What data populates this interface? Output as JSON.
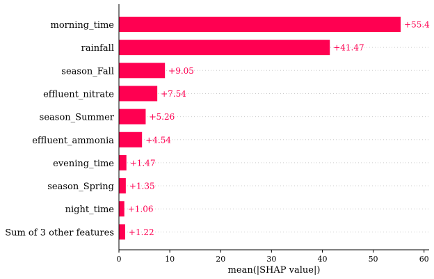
{
  "chart_data": {
    "type": "bar",
    "orientation": "horizontal",
    "categories": [
      "morning_time",
      "rainfall",
      "season_Fall",
      "effluent_nitrate",
      "season_Summer",
      "effluent_ammonia",
      "evening_time",
      "season_Spring",
      "night_time",
      "Sum of 3 other features"
    ],
    "values": [
      55.4,
      41.47,
      9.05,
      7.54,
      5.26,
      4.54,
      1.47,
      1.35,
      1.06,
      1.22
    ],
    "value_labels": [
      "+55.4",
      "+41.47",
      "+9.05",
      "+7.54",
      "+5.26",
      "+4.54",
      "+1.47",
      "+1.35",
      "+1.06",
      "+1.22"
    ],
    "xlabel": "mean(|SHAP value|)",
    "ylabel": "",
    "title": "",
    "xlim": [
      0,
      61
    ],
    "xticks": [
      0,
      10,
      20,
      30,
      40,
      50,
      60
    ],
    "grid": "dotted horizontal row lines",
    "colors": {
      "bar": "#ff0051",
      "value_text": "#ff0051",
      "grid": "#cccccc",
      "axis": "#000000"
    }
  }
}
